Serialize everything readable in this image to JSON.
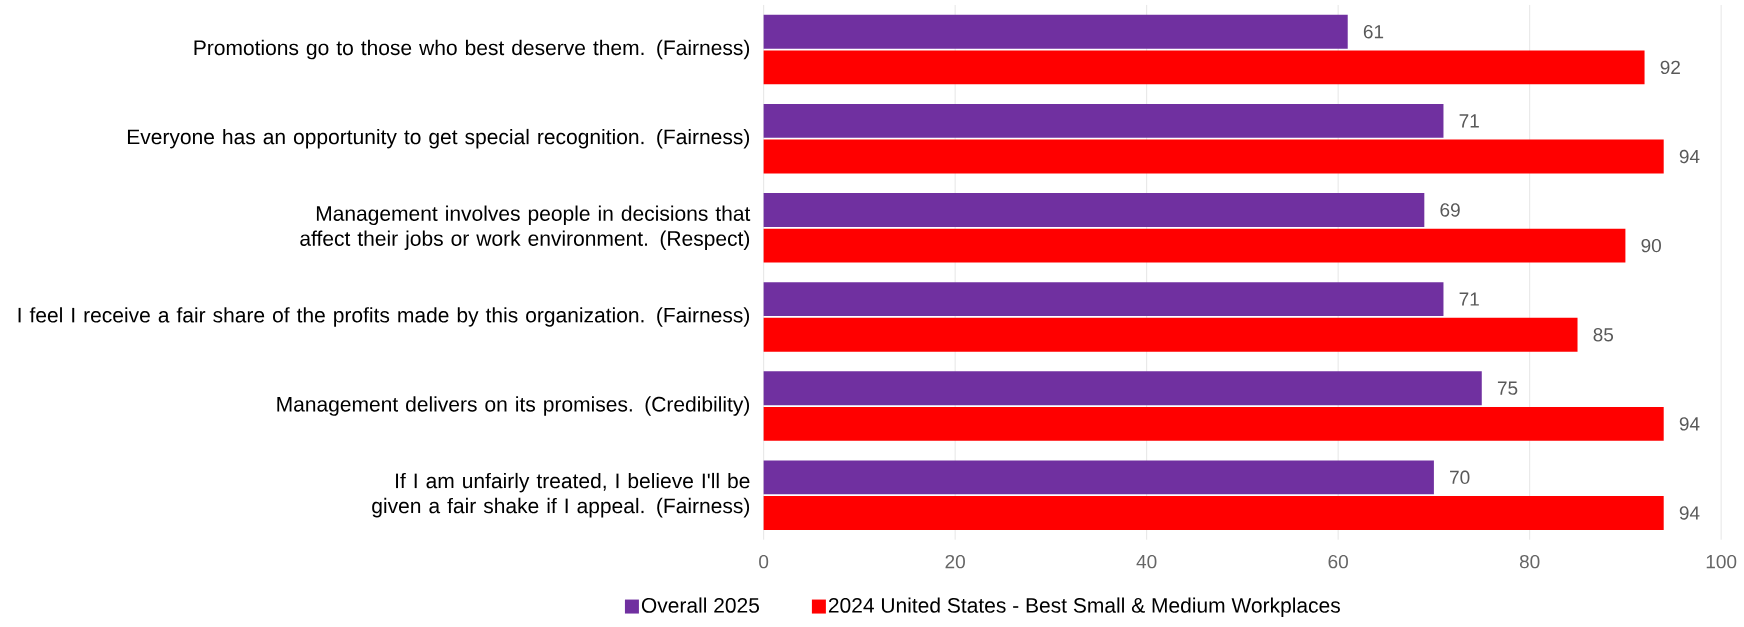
{
  "chart_data": {
    "type": "bar",
    "orientation": "horizontal",
    "categories": [
      "Promotions go to those who best deserve them. (Fairness)",
      "Everyone has an opportunity to get special recognition. (Fairness)",
      "Management involves people in decisions that affect their jobs or work environment. (Respect)",
      "I feel I receive a fair share of the profits made by this organization. (Fairness)",
      "Management delivers on its promises. (Credibility)",
      "If I am unfairly treated, I believe I'll be given a fair shake if I appeal. (Fairness)"
    ],
    "series": [
      {
        "name": "Overall 2025",
        "color": "#7030a0",
        "values": [
          61,
          71,
          69,
          71,
          75,
          70
        ]
      },
      {
        "name": "2024 United States - Best Small & Medium Workplaces",
        "color": "#ff0000",
        "values": [
          92,
          94,
          90,
          85,
          94,
          94
        ]
      }
    ],
    "xlim": [
      0,
      100
    ],
    "xticks": [
      0,
      20,
      40,
      60,
      80,
      100
    ],
    "grid": "x",
    "legend": "bottom",
    "data_labels": true
  }
}
